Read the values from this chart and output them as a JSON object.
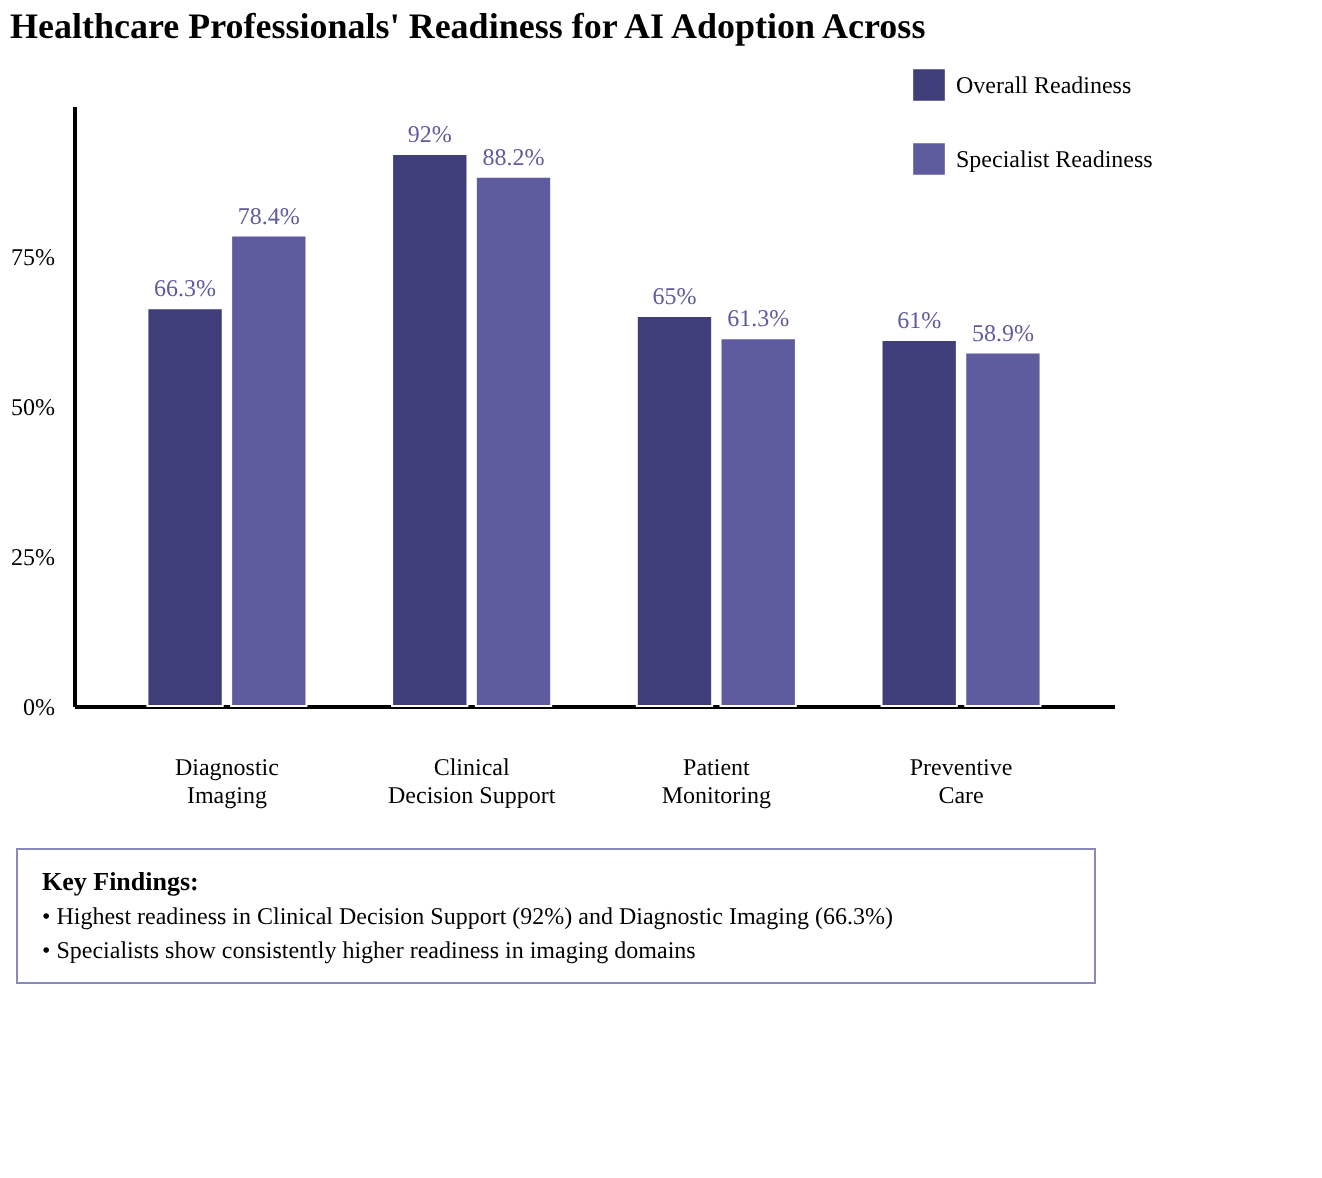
{
  "chart_data": {
    "type": "bar",
    "title": "Healthcare Professionals' Readiness for AI Adoption Across",
    "categories": [
      "Diagnostic Imaging",
      "Clinical Decision Support",
      "Patient Monitoring",
      "Preventive Care"
    ],
    "series": [
      {
        "name": "Overall Readiness",
        "color": "#3f3d7a",
        "values": [
          66.3,
          92,
          65,
          61
        ]
      },
      {
        "name": "Specialist Readiness",
        "color": "#5e5b9e",
        "values": [
          78.4,
          88.2,
          61.3,
          58.9
        ]
      }
    ],
    "ylim": [
      0,
      100
    ],
    "yticks": [
      {
        "value": 0,
        "label": "0%"
      },
      {
        "value": 25,
        "label": "25%"
      },
      {
        "value": 50,
        "label": "50%"
      },
      {
        "value": 75,
        "label": "75%"
      }
    ],
    "value_labels": [
      [
        "66.3%",
        "92%",
        "65%",
        "61%"
      ],
      [
        "78.4%",
        "88.2%",
        "61.3%",
        "58.9%"
      ]
    ],
    "legend": "top right",
    "grid": false,
    "annotations": [
      "Key Findings:",
      "• Highest readiness in Clinical Decision Support (92%) and Diagnostic Imaging (66.3%)",
      "• Specialists show consistently higher readiness in imaging domains"
    ]
  }
}
